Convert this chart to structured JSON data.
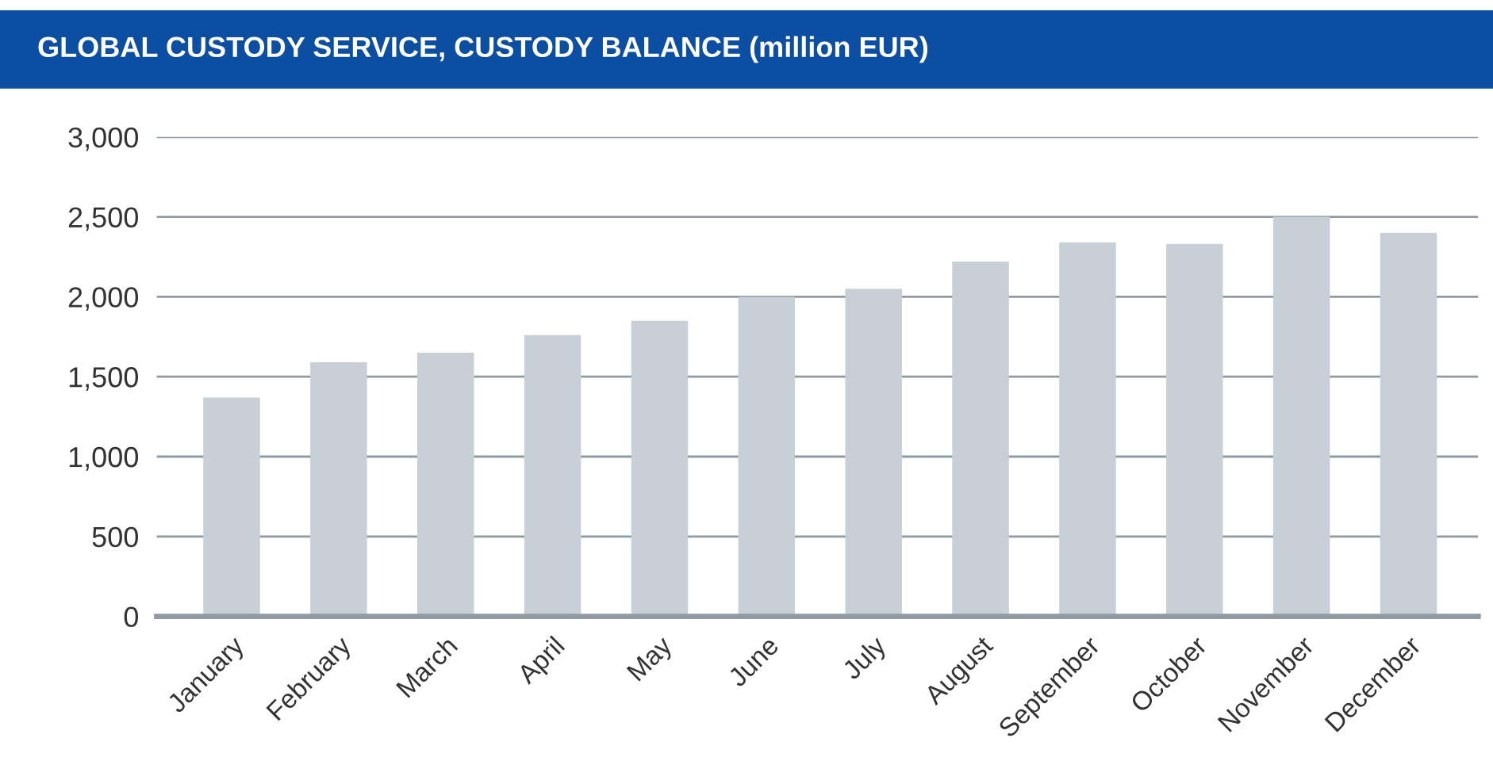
{
  "chart_data": {
    "type": "bar",
    "title": "GLOBAL CUSTODY SERVICE, CUSTODY BALANCE (million EUR)",
    "categories": [
      "January",
      "February",
      "March",
      "April",
      "May",
      "June",
      "July",
      "August",
      "September",
      "October",
      "November",
      "December"
    ],
    "values": [
      1370,
      1590,
      1650,
      1760,
      1850,
      2000,
      2050,
      2220,
      2340,
      2330,
      2500,
      2400
    ],
    "color": "#c8cfd6",
    "ylim": [
      0,
      3000
    ],
    "yticks": [
      {
        "value": 0,
        "label": "0"
      },
      {
        "value": 500,
        "label": "500"
      },
      {
        "value": 1000,
        "label": "1,000"
      },
      {
        "value": 1500,
        "label": "1,500"
      },
      {
        "value": 2000,
        "label": "2,000"
      },
      {
        "value": 2500,
        "label": "2,500"
      },
      {
        "value": 3000,
        "label": "3,000"
      }
    ],
    "grid": "y",
    "legend": false
  }
}
